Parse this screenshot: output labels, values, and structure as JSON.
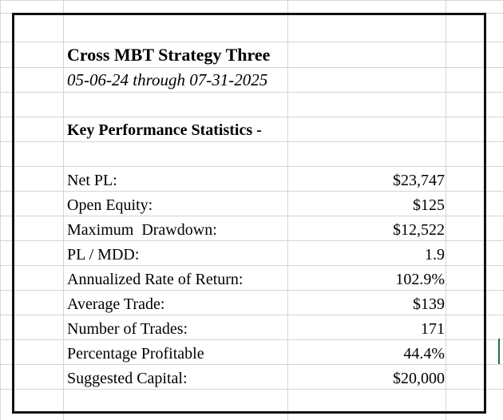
{
  "report": {
    "title": "Cross MBT Strategy Three",
    "date_range": "05-06-24 through 07-31-2025",
    "section_heading": "Key Performance Statistics -"
  },
  "stats": [
    {
      "label": "Net PL:",
      "value": "$23,747"
    },
    {
      "label": "Open Equity:",
      "value": "$125"
    },
    {
      "label": "Maximum  Drawdown:",
      "value": "$12,522"
    },
    {
      "label": "PL / MDD:",
      "value": "1.9"
    },
    {
      "label": "Annualized Rate of Return:",
      "value": "102.9%"
    },
    {
      "label": "Average Trade:",
      "value": "$139"
    },
    {
      "label": "Number of Trades:",
      "value": "171"
    },
    {
      "label": "Percentage Profitable",
      "value": "44.4%"
    },
    {
      "label": "Suggested Capital:",
      "value": "$20,000"
    }
  ],
  "colors": {
    "gridline": "#d4d4d4",
    "border": "#111111",
    "selection": "#217346"
  }
}
